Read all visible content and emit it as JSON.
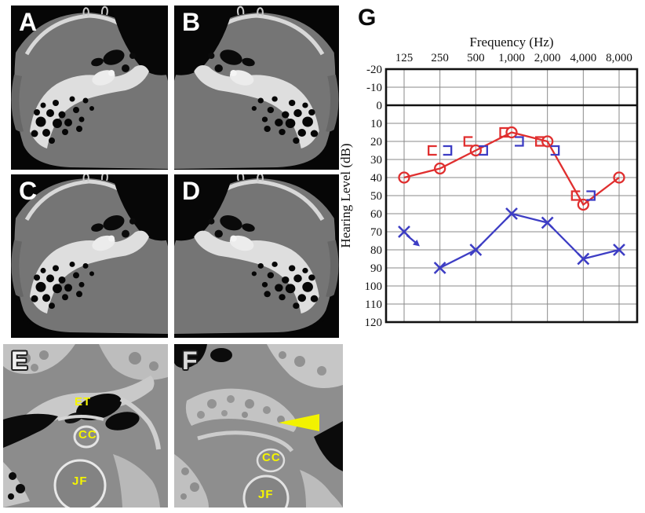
{
  "chart_label": "G",
  "panels": {
    "a": {
      "letter": "A",
      "description": "axial temporal bone CT"
    },
    "b": {
      "letter": "B",
      "description": "axial temporal bone CT"
    },
    "c": {
      "letter": "C",
      "description": "axial temporal bone CT"
    },
    "d": {
      "letter": "D",
      "description": "axial temporal bone CT"
    },
    "e": {
      "letter": "E",
      "ann_et": "ET",
      "ann_cc": "CC",
      "ann_jf": "JF",
      "description": "magnified temporal bone CT"
    },
    "f": {
      "letter": "F",
      "ann_cc": "CC",
      "ann_jf": "JF",
      "arrowhead_icon": "yellow-left-pointing-arrowhead",
      "description": "magnified temporal bone CT"
    }
  },
  "colors": {
    "right_ear_red": "#e02f2f",
    "left_ear_blue": "#3d3dc4",
    "annotation_yellow": "#f5f500",
    "gridline_gray": "#8a8a8a"
  },
  "chart_data": {
    "type": "line",
    "title": "Frequency (Hz)",
    "ylabel": "Hearing Level (dB)",
    "frequencies_hz": [
      125,
      250,
      500,
      1000,
      2000,
      4000,
      8000
    ],
    "x_tick_labels": [
      "125",
      "250",
      "500",
      "1,000",
      "2,000",
      "4,000",
      "8,000"
    ],
    "y_ticks": [
      -20,
      -10,
      0,
      10,
      20,
      30,
      40,
      50,
      60,
      70,
      80,
      90,
      100,
      110,
      120
    ],
    "ylim": [
      -20,
      120
    ],
    "grid": true,
    "legend": "none",
    "series": [
      {
        "name": "right-ear-air-conduction",
        "symbol": "circle",
        "color": "#e02f2f",
        "line": true,
        "line_from_index": 0,
        "points": [
          {
            "f": 125,
            "db": 40
          },
          {
            "f": 250,
            "db": 35
          },
          {
            "f": 500,
            "db": 25
          },
          {
            "f": 1000,
            "db": 15
          },
          {
            "f": 2000,
            "db": 20
          },
          {
            "f": 4000,
            "db": 55
          },
          {
            "f": 8000,
            "db": 40
          }
        ]
      },
      {
        "name": "left-ear-air-conduction",
        "symbol": "x",
        "color": "#3d3dc4",
        "line": true,
        "line_from_index": 1,
        "no_response_arrow_at_hz": 125,
        "points": [
          {
            "f": 125,
            "db": 70
          },
          {
            "f": 250,
            "db": 90
          },
          {
            "f": 500,
            "db": 80
          },
          {
            "f": 1000,
            "db": 60
          },
          {
            "f": 2000,
            "db": 65
          },
          {
            "f": 4000,
            "db": 85
          },
          {
            "f": 8000,
            "db": 80
          }
        ]
      },
      {
        "name": "right-ear-bone-conduction",
        "symbol": "left-bracket",
        "color": "#e02f2f",
        "line": false,
        "points": [
          {
            "f": 250,
            "db": 25
          },
          {
            "f": 500,
            "db": 20
          },
          {
            "f": 1000,
            "db": 15
          },
          {
            "f": 2000,
            "db": 20
          },
          {
            "f": 4000,
            "db": 50
          }
        ]
      },
      {
        "name": "left-ear-bone-conduction",
        "symbol": "right-bracket",
        "color": "#3d3dc4",
        "line": false,
        "points": [
          {
            "f": 250,
            "db": 25
          },
          {
            "f": 500,
            "db": 25
          },
          {
            "f": 1000,
            "db": 20
          },
          {
            "f": 2000,
            "db": 25
          },
          {
            "f": 4000,
            "db": 50
          }
        ]
      }
    ]
  }
}
